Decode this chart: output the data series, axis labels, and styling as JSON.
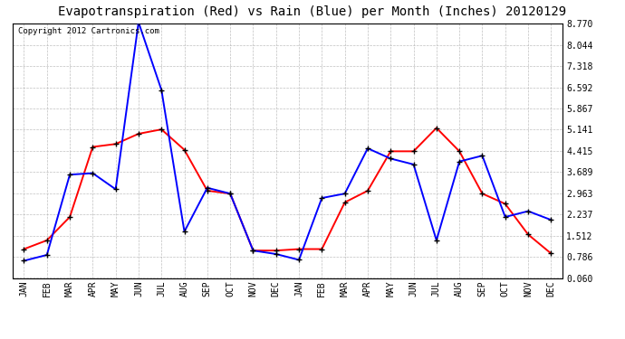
{
  "title": "Evapotranspiration (Red) vs Rain (Blue) per Month (Inches) 20120129",
  "copyright": "Copyright 2012 Cartronics.com",
  "months": [
    "JAN",
    "FEB",
    "MAR",
    "APR",
    "MAY",
    "JUN",
    "JUL",
    "AUG",
    "SEP",
    "OCT",
    "NOV",
    "DEC",
    "JAN",
    "FEB",
    "MAR",
    "APR",
    "MAY",
    "JUN",
    "JUL",
    "AUG",
    "SEP",
    "OCT",
    "NOV",
    "DEC"
  ],
  "red": [
    1.05,
    1.35,
    2.15,
    4.55,
    4.65,
    5.0,
    5.15,
    4.45,
    3.05,
    2.95,
    1.0,
    1.0,
    1.05,
    1.05,
    2.65,
    3.05,
    4.4,
    4.4,
    5.2,
    4.4,
    2.95,
    2.6,
    1.55,
    0.9
  ],
  "blue": [
    0.65,
    0.85,
    3.6,
    3.65,
    3.1,
    8.82,
    6.5,
    1.65,
    3.15,
    2.95,
    1.0,
    0.88,
    0.68,
    2.8,
    2.95,
    4.5,
    4.15,
    3.95,
    1.35,
    4.05,
    4.25,
    2.15,
    2.35,
    2.05
  ],
  "ylim": [
    0.06,
    8.77
  ],
  "yticks": [
    0.06,
    0.786,
    1.512,
    2.237,
    2.963,
    3.689,
    4.415,
    5.141,
    5.867,
    6.592,
    7.318,
    8.044,
    8.77
  ],
  "background_color": "#ffffff",
  "grid_color": "#b0b0b0",
  "title_fontsize": 10,
  "copyright_fontsize": 6.5,
  "tick_fontsize": 7,
  "line_width": 1.4,
  "marker": "+"
}
